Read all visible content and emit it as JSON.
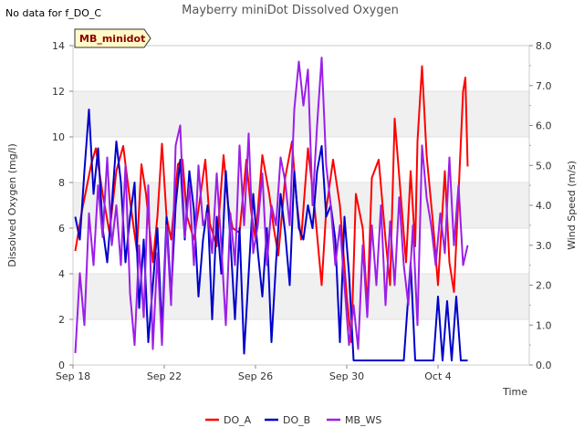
{
  "header": {
    "note": "No data for f_DO_C",
    "title": "Mayberry miniDot Dissolved Oxygen",
    "badge": "MB_minidot"
  },
  "chart_data": {
    "type": "line",
    "title": "Mayberry miniDot Dissolved Oxygen",
    "xlabel": "Time",
    "ylabel": "Dissolved Oxygen (mg/l)",
    "y2label": "Wind Speed (m/s)",
    "xlim": [
      0,
      20
    ],
    "ylim": [
      0,
      14
    ],
    "y2lim": [
      0,
      8
    ],
    "x_ticks": [
      {
        "value": 0,
        "label": "Sep 18"
      },
      {
        "value": 4,
        "label": "Sep 22"
      },
      {
        "value": 8,
        "label": "Sep 26"
      },
      {
        "value": 12,
        "label": "Sep 30"
      },
      {
        "value": 16,
        "label": "Oct 4"
      }
    ],
    "y_ticks": [
      0,
      2,
      4,
      6,
      8,
      10,
      12,
      14
    ],
    "y2_ticks": [
      "0.0",
      "1.0",
      "2.0",
      "3.0",
      "4.0",
      "5.0",
      "6.0",
      "7.0",
      "8.0"
    ],
    "grid_bands": true,
    "legend_position": "bottom",
    "colors": {
      "DO_A": "#ff0000",
      "DO_B": "#0000cc",
      "MB_WS": "#9b1fe8"
    },
    "series": [
      {
        "name": "DO_A",
        "axis": "left",
        "x": [
          0.1,
          0.4,
          0.8,
          1.0,
          1.3,
          1.6,
          1.9,
          2.2,
          2.5,
          2.8,
          3.0,
          3.2,
          3.5,
          3.7,
          3.9,
          4.1,
          4.3,
          4.6,
          4.8,
          5.0,
          5.3,
          5.5,
          5.8,
          6.0,
          6.3,
          6.6,
          6.8,
          7.0,
          7.3,
          7.6,
          7.8,
          8.0,
          8.3,
          8.6,
          8.8,
          9.0,
          9.3,
          9.6,
          9.8,
          10.0,
          10.3,
          10.6,
          10.9,
          11.1,
          11.4,
          11.7,
          12.0,
          12.2,
          12.4,
          12.7,
          12.9,
          13.1,
          13.4,
          13.7,
          13.9,
          14.1,
          14.4,
          14.6,
          14.8,
          15.0,
          15.1,
          15.3,
          15.5,
          15.8,
          16.0,
          16.3,
          16.5,
          16.7,
          16.9,
          17.1,
          17.2,
          17.3
        ],
        "y": [
          5.0,
          6.8,
          8.8,
          9.5,
          7.5,
          5.8,
          8.5,
          9.6,
          7.2,
          5.0,
          8.8,
          7.5,
          4.5,
          6.5,
          9.7,
          6.5,
          5.5,
          8.8,
          9.0,
          6.5,
          5.5,
          6.8,
          9.0,
          6.2,
          5.2,
          9.2,
          7.0,
          6.0,
          5.8,
          9.0,
          6.8,
          5.5,
          9.2,
          7.5,
          6.0,
          4.8,
          8.2,
          9.8,
          7.2,
          5.5,
          9.5,
          6.8,
          3.5,
          6.8,
          9.0,
          7.0,
          3.0,
          1.0,
          7.5,
          6.0,
          2.5,
          8.2,
          9.0,
          5.5,
          3.5,
          10.8,
          7.0,
          4.5,
          8.5,
          5.2,
          9.8,
          13.1,
          9.2,
          6.0,
          3.5,
          8.5,
          4.5,
          3.2,
          7.5,
          12.0,
          12.6,
          8.7
        ]
      },
      {
        "name": "DO_B",
        "axis": "left",
        "x": [
          0.1,
          0.3,
          0.5,
          0.7,
          0.9,
          1.1,
          1.3,
          1.5,
          1.7,
          1.9,
          2.1,
          2.3,
          2.5,
          2.7,
          2.9,
          3.1,
          3.3,
          3.5,
          3.7,
          3.9,
          4.1,
          4.3,
          4.5,
          4.7,
          4.9,
          5.1,
          5.3,
          5.5,
          5.7,
          5.9,
          6.1,
          6.3,
          6.5,
          6.7,
          6.9,
          7.1,
          7.3,
          7.5,
          7.7,
          7.9,
          8.1,
          8.3,
          8.5,
          8.7,
          8.9,
          9.1,
          9.3,
          9.5,
          9.7,
          9.9,
          10.1,
          10.3,
          10.5,
          10.7,
          10.9,
          11.1,
          11.3,
          11.5,
          11.7,
          11.9,
          12.1,
          12.3,
          12.6,
          13.0,
          13.5,
          14.0,
          14.5,
          14.8,
          15.0,
          15.2,
          15.5,
          15.8,
          16.0,
          16.2,
          16.4,
          16.6,
          16.8,
          17.0,
          17.3
        ],
        "y": [
          6.5,
          5.5,
          8.5,
          11.2,
          7.5,
          9.5,
          6.0,
          4.5,
          7.0,
          9.8,
          8.0,
          4.5,
          6.5,
          8.0,
          2.5,
          5.5,
          1.0,
          3.5,
          6.0,
          1.5,
          6.5,
          3.0,
          7.0,
          9.0,
          5.5,
          8.5,
          6.8,
          3.0,
          5.5,
          7.0,
          2.0,
          6.5,
          4.0,
          8.5,
          5.5,
          2.0,
          6.0,
          0.5,
          4.0,
          7.5,
          5.0,
          3.0,
          6.0,
          1.0,
          4.5,
          7.5,
          5.8,
          3.5,
          8.5,
          6.0,
          5.5,
          7.0,
          6.0,
          8.5,
          9.6,
          6.5,
          7.0,
          5.5,
          1.0,
          6.5,
          4.0,
          0.2,
          0.2,
          0.2,
          0.2,
          0.2,
          0.2,
          4.5,
          0.2,
          0.2,
          0.2,
          0.2,
          3.0,
          0.2,
          2.8,
          0.2,
          3.0,
          0.2,
          0.2
        ]
      },
      {
        "name": "MB_WS",
        "axis": "right",
        "x": [
          0.1,
          0.3,
          0.5,
          0.7,
          0.9,
          1.1,
          1.3,
          1.5,
          1.7,
          1.9,
          2.1,
          2.3,
          2.5,
          2.7,
          2.9,
          3.1,
          3.3,
          3.5,
          3.7,
          3.9,
          4.1,
          4.3,
          4.5,
          4.7,
          4.9,
          5.1,
          5.3,
          5.5,
          5.7,
          5.9,
          6.1,
          6.3,
          6.5,
          6.7,
          6.9,
          7.1,
          7.3,
          7.5,
          7.7,
          7.9,
          8.1,
          8.3,
          8.5,
          8.7,
          8.9,
          9.1,
          9.3,
          9.5,
          9.7,
          9.9,
          10.1,
          10.3,
          10.5,
          10.7,
          10.9,
          11.1,
          11.3,
          11.5,
          11.7,
          11.9,
          12.1,
          12.3,
          12.5,
          12.7,
          12.9,
          13.1,
          13.3,
          13.5,
          13.7,
          13.9,
          14.1,
          14.3,
          14.5,
          14.7,
          14.9,
          15.1,
          15.3,
          15.5,
          15.7,
          15.9,
          16.1,
          16.3,
          16.5,
          16.7,
          16.9,
          17.1,
          17.3
        ],
        "y": [
          0.3,
          2.3,
          1.0,
          3.8,
          2.5,
          4.5,
          3.2,
          5.2,
          3.0,
          4.0,
          2.5,
          5.0,
          1.8,
          0.5,
          3.0,
          1.2,
          4.5,
          0.4,
          2.8,
          0.5,
          3.5,
          1.5,
          5.5,
          6.0,
          3.2,
          4.5,
          2.5,
          5.0,
          3.5,
          3.8,
          2.8,
          4.8,
          3.0,
          1.0,
          3.8,
          2.5,
          5.5,
          3.5,
          5.8,
          2.8,
          3.5,
          4.8,
          2.5,
          4.0,
          3.5,
          5.2,
          4.6,
          3.5,
          6.4,
          7.6,
          6.5,
          7.4,
          4.0,
          6.0,
          7.7,
          5.0,
          4.0,
          2.5,
          3.5,
          2.0,
          0.5,
          1.5,
          0.4,
          3.0,
          1.2,
          3.5,
          2.0,
          4.0,
          1.5,
          3.6,
          2.0,
          4.2,
          2.5,
          1.5,
          3.5,
          1.0,
          5.5,
          4.2,
          3.5,
          2.5,
          3.8,
          2.8,
          5.2,
          3.0,
          4.5,
          2.5,
          3.0
        ]
      }
    ]
  }
}
